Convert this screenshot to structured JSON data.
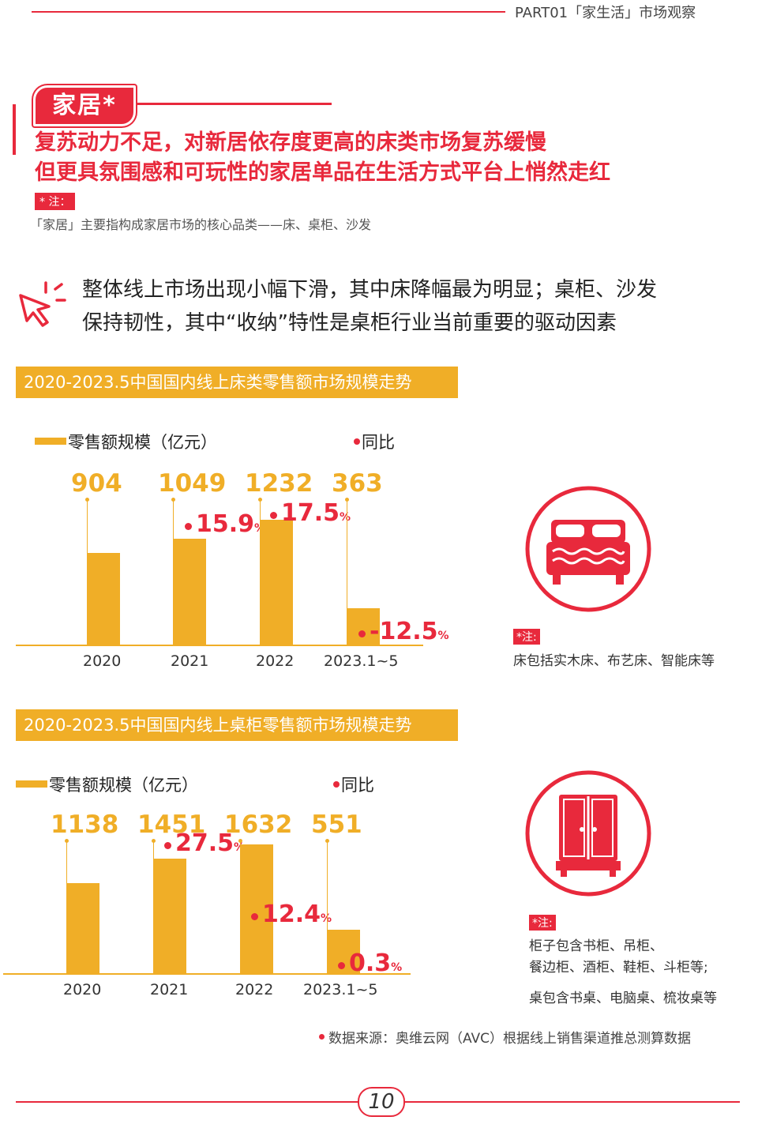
{
  "header": {
    "text": "PART01「家生活」市场观察"
  },
  "section": {
    "tag": "家居*",
    "headline_1": "复苏动力不足，对新居依存度更高的床类市场复苏缓慢",
    "headline_2": "但更具氛围感和可玩性的家居单品在生活方式平台上悄然走红",
    "note_label": "* 注：",
    "note_text": "「家居」主要指构成家居市场的核心品类——床、桌柜、沙发"
  },
  "insight": {
    "line_1": "整体线上市场出现小幅下滑，其中床降幅最为明显；桌柜、沙发",
    "line_2": "保持韧性，其中“收纳”特性是桌柜行业当前重要的驱动因素"
  },
  "chart_data": [
    {
      "type": "bar",
      "title": "2020-2023.5中国国内线上床类零售额市场规模走势",
      "legend": [
        "零售额规模（亿元）",
        "同比"
      ],
      "categories": [
        "2020",
        "2021",
        "2022",
        "2023.1~5"
      ],
      "values": [
        904,
        1049,
        1232,
        363
      ],
      "value_labels": [
        "904",
        "1049",
        "1232",
        "363"
      ],
      "yoy": [
        "",
        "15.9",
        "17.5",
        "-12.5"
      ],
      "pct_sign": "%",
      "note_label": "*注:",
      "note_lines": [
        "床包括实木床、布艺床、智能床等"
      ],
      "icon": "bed-icon"
    },
    {
      "type": "bar",
      "title": "2020-2023.5中国国内线上桌柜零售额市场规模走势",
      "legend": [
        "零售额规模（亿元）",
        "同比"
      ],
      "categories": [
        "2020",
        "2021",
        "2022",
        "2023.1~5"
      ],
      "values": [
        1138,
        1451,
        1632,
        551
      ],
      "value_labels": [
        "1138",
        "1451",
        "1632",
        "551"
      ],
      "yoy": [
        "",
        "27.5",
        "12.4",
        "0.3"
      ],
      "pct_sign": "%",
      "note_label": "*注:",
      "note_lines": [
        "柜子包含书柜、吊柜、",
        "餐边柜、酒柜、鞋柜、斗柜等;",
        "桌包含书桌、电脑桌、梳妆桌等"
      ],
      "icon": "wardrobe-icon"
    }
  ],
  "source": "数据来源：奥维云网（AVC）根据线上销售渠道推总测算数据",
  "page_number": "10",
  "colors": {
    "red": "#e8293c",
    "gold": "#f0ae27"
  }
}
